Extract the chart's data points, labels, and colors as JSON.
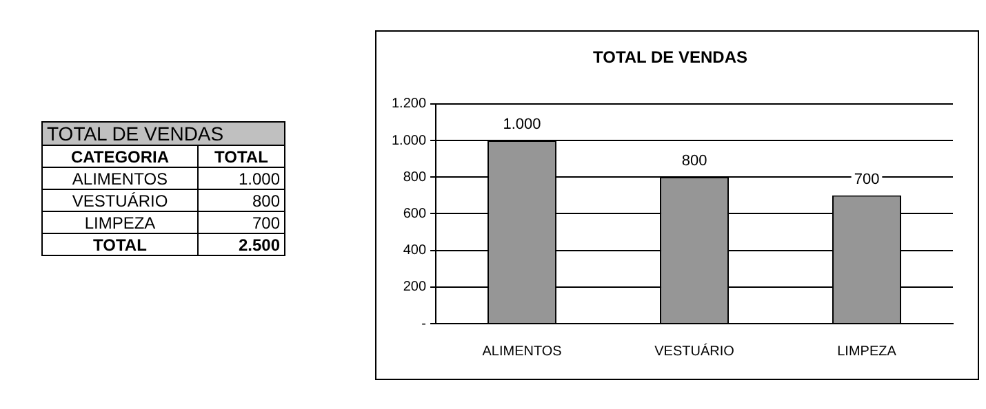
{
  "chart_data": {
    "type": "bar",
    "title": "TOTAL DE VENDAS",
    "categories": [
      "ALIMENTOS",
      "VESTUÁRIO",
      "LIMPEZA"
    ],
    "values": [
      1000,
      800,
      700
    ],
    "value_labels": [
      "1.000",
      "800",
      "700"
    ],
    "color": "#969696",
    "ylim": [
      0,
      1200
    ],
    "yticks": [
      {
        "value": 0,
        "label": "-"
      },
      200,
      400,
      600,
      800,
      {
        "value": 1000,
        "label": "1.000"
      },
      {
        "value": 1200,
        "label": "1.200"
      }
    ],
    "grid": "y",
    "legend": false,
    "annotations": [
      "TOTAL DE VENDAS",
      "CATEGORIA",
      "TOTAL",
      "ALIMENTOS",
      "1.000",
      "VESTUÁRIO",
      "800",
      "LIMPEZA",
      "700",
      "TOTAL",
      "2.500"
    ]
  }
}
